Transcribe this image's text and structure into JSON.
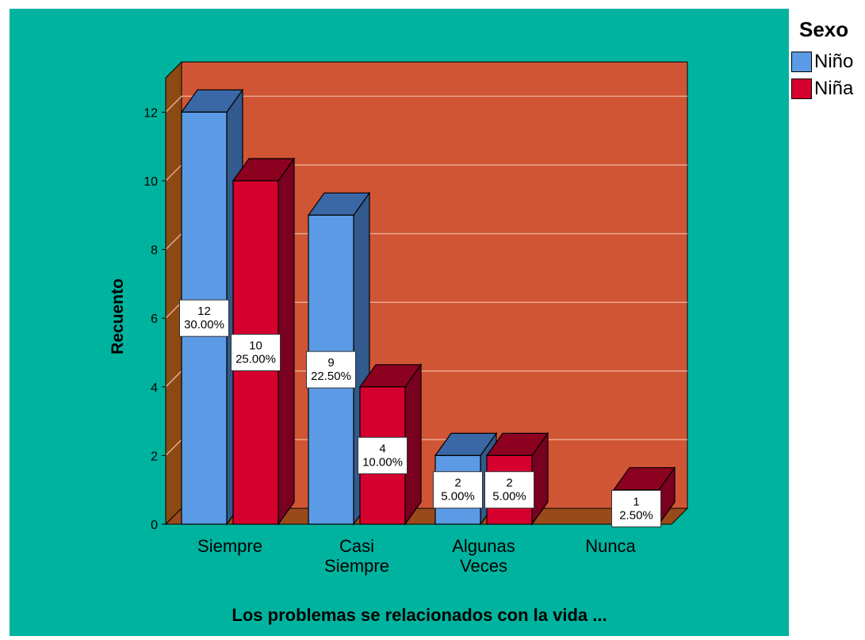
{
  "chart_data": {
    "type": "bar",
    "title": "",
    "xlabel": "Los problemas se relacionados con la vida ...",
    "ylabel": "Recuento",
    "ylim": [
      0,
      13
    ],
    "yticks": [
      0,
      2,
      4,
      6,
      8,
      10,
      12
    ],
    "grid": true,
    "legend_position": "right",
    "categories": [
      [
        "Siempre"
      ],
      [
        "Casi",
        "Siempre"
      ],
      [
        "Algunas",
        "Veces"
      ],
      [
        "Nunca"
      ]
    ],
    "series": [
      {
        "name": "Niño",
        "color": "#5b9be6",
        "values": [
          12,
          9,
          2,
          0
        ],
        "labels": [
          [
            "12",
            "30.00%"
          ],
          [
            "9",
            "22.50%"
          ],
          [
            "2",
            "5.00%"
          ],
          null
        ]
      },
      {
        "name": "Niña",
        "color": "#d6002f",
        "values": [
          10,
          4,
          2,
          1
        ],
        "labels": [
          [
            "10",
            "25.00%"
          ],
          [
            "4",
            "10.00%"
          ],
          [
            "2",
            "5.00%"
          ],
          [
            "1",
            "2.50%"
          ]
        ]
      }
    ]
  },
  "legend": {
    "title": "Sexo",
    "items": [
      "Niño",
      "Niña"
    ]
  },
  "colors": {
    "outer_background": "#00b39e",
    "back_wall": "#d05535",
    "side_wall": "#8a4a12",
    "floor": "#9a4a1a",
    "gridline": "#e8a890",
    "nino_front": "#5b9be6",
    "nino_top": "#3a68a6",
    "nino_side": "#335a8c",
    "nina_front": "#d6002f",
    "nina_top": "#8c0020",
    "nina_side": "#7a0020"
  }
}
